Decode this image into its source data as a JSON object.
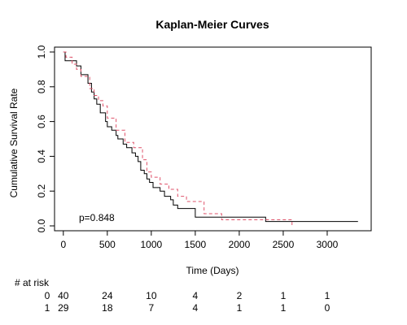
{
  "chart_data": {
    "type": "line",
    "title": "Kaplan-Meier Curves",
    "xlabel": "Time (Days)",
    "ylabel": "Cumulative Survival Rate",
    "xlim": [
      -100,
      3500
    ],
    "ylim": [
      0,
      1
    ],
    "x_ticks": [
      0,
      500,
      1000,
      1500,
      2000,
      2500,
      3000
    ],
    "y_ticks": [
      0.0,
      0.2,
      0.4,
      0.6,
      0.8,
      1.0
    ],
    "x_tick_labels": [
      "0",
      "500",
      "1000",
      "1500",
      "2000",
      "2500",
      "3000"
    ],
    "y_tick_labels": [
      "0.0",
      "0.2",
      "0.4",
      "0.6",
      "0.8",
      "1.0"
    ],
    "grid": false,
    "annotation": "p=0.848",
    "series": [
      {
        "color": "#000000",
        "line_style": "solid",
        "x": [
          0,
          20,
          150,
          200,
          280,
          320,
          350,
          380,
          420,
          480,
          500,
          550,
          600,
          620,
          680,
          720,
          780,
          820,
          850,
          880,
          920,
          950,
          980,
          1020,
          1050,
          1100,
          1150,
          1220,
          1250,
          1300,
          1320,
          1500,
          1700,
          2300,
          2600,
          3350
        ],
        "y": [
          1.0,
          0.95,
          0.92,
          0.87,
          0.82,
          0.77,
          0.73,
          0.7,
          0.65,
          0.6,
          0.57,
          0.55,
          0.52,
          0.5,
          0.47,
          0.45,
          0.42,
          0.4,
          0.37,
          0.32,
          0.3,
          0.27,
          0.25,
          0.22,
          0.22,
          0.2,
          0.17,
          0.15,
          0.12,
          0.1,
          0.1,
          0.05,
          0.05,
          0.025,
          0.025,
          0.025
        ]
      },
      {
        "color": "#df536b",
        "line_style": "dashed",
        "x": [
          0,
          30,
          100,
          150,
          200,
          300,
          350,
          400,
          450,
          500,
          600,
          700,
          800,
          900,
          950,
          1000,
          1100,
          1200,
          1300,
          1400,
          1600,
          1800,
          2300,
          2600
        ],
        "y": [
          1.0,
          0.97,
          0.93,
          0.9,
          0.86,
          0.79,
          0.75,
          0.72,
          0.69,
          0.62,
          0.55,
          0.48,
          0.45,
          0.38,
          0.31,
          0.28,
          0.24,
          0.21,
          0.17,
          0.14,
          0.07,
          0.035,
          0.035,
          0.0
        ]
      }
    ]
  },
  "risk_table": {
    "header": "# at risk",
    "rows": [
      {
        "label": "0",
        "values": [
          "40",
          "24",
          "10",
          "4",
          "2",
          "1",
          "1"
        ]
      },
      {
        "label": "1",
        "values": [
          "29",
          "18",
          "7",
          "4",
          "1",
          "1",
          "0"
        ]
      }
    ]
  }
}
